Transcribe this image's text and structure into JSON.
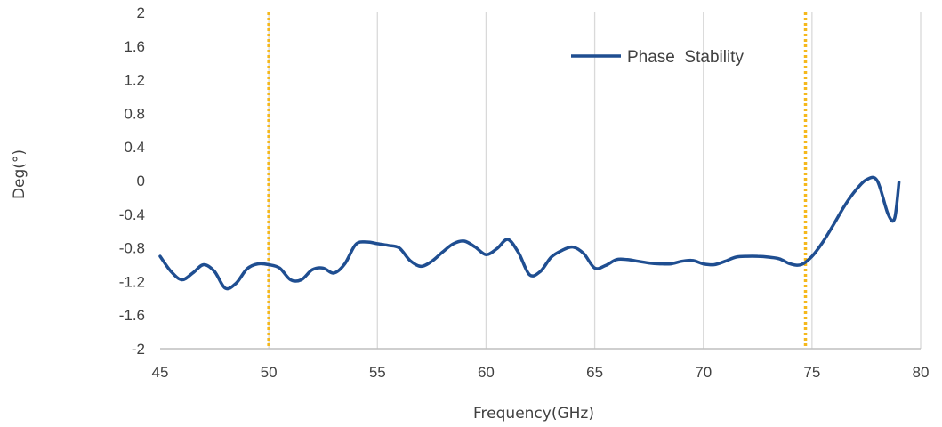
{
  "chart_data": {
    "type": "line",
    "title": "",
    "xlabel": "Frequency(GHz)",
    "ylabel": "Deg(°)",
    "xlim": [
      45,
      80
    ],
    "ylim": [
      -2,
      2
    ],
    "x_ticks": [
      45,
      50,
      55,
      60,
      65,
      70,
      75,
      80
    ],
    "y_ticks": [
      "-2",
      "-1.6",
      "-1.2",
      "-0.8",
      "-0.4",
      "0",
      "0.4",
      "0.8",
      "1.2",
      "1.6",
      "2"
    ],
    "grid": "vertical",
    "legend": "top-right",
    "colors": {
      "series": "#1F4E91",
      "marker_lines": "#F5B81C",
      "grid": "#D9D9D9"
    },
    "reference_lines_x": [
      50,
      74.7
    ],
    "series": [
      {
        "name": "Phase  Stability",
        "x": [
          45,
          45.5,
          46,
          46.5,
          47,
          47.5,
          48,
          48.5,
          49,
          49.5,
          50,
          50.5,
          51,
          51.5,
          52,
          52.5,
          53,
          53.5,
          54,
          54.5,
          55,
          55.5,
          56,
          56.5,
          57,
          57.5,
          58,
          58.5,
          59,
          59.5,
          60,
          60.5,
          61,
          61.5,
          62,
          62.5,
          63,
          63.5,
          64,
          64.5,
          65,
          65.5,
          66,
          66.5,
          67,
          67.5,
          68,
          68.5,
          69,
          69.5,
          70,
          70.5,
          71,
          71.5,
          72,
          72.5,
          73,
          73.5,
          74,
          74.5,
          75,
          75.5,
          76,
          76.5,
          77,
          77.5,
          78,
          78.5,
          78.8,
          79
        ],
        "y": [
          -0.9,
          -1.08,
          -1.18,
          -1.1,
          -1.0,
          -1.08,
          -1.28,
          -1.22,
          -1.05,
          -0.99,
          -1.0,
          -1.04,
          -1.18,
          -1.18,
          -1.06,
          -1.04,
          -1.1,
          -0.99,
          -0.76,
          -0.73,
          -0.75,
          -0.77,
          -0.8,
          -0.95,
          -1.02,
          -0.96,
          -0.85,
          -0.75,
          -0.72,
          -0.79,
          -0.88,
          -0.81,
          -0.7,
          -0.86,
          -1.12,
          -1.08,
          -0.91,
          -0.83,
          -0.79,
          -0.87,
          -1.04,
          -1.01,
          -0.94,
          -0.94,
          -0.96,
          -0.98,
          -0.99,
          -0.99,
          -0.96,
          -0.95,
          -0.99,
          -1.0,
          -0.96,
          -0.91,
          -0.9,
          -0.9,
          -0.91,
          -0.93,
          -0.99,
          -1.0,
          -0.9,
          -0.73,
          -0.52,
          -0.3,
          -0.12,
          0.01,
          0.0,
          -0.4,
          -0.45,
          -0.02
        ]
      }
    ]
  }
}
